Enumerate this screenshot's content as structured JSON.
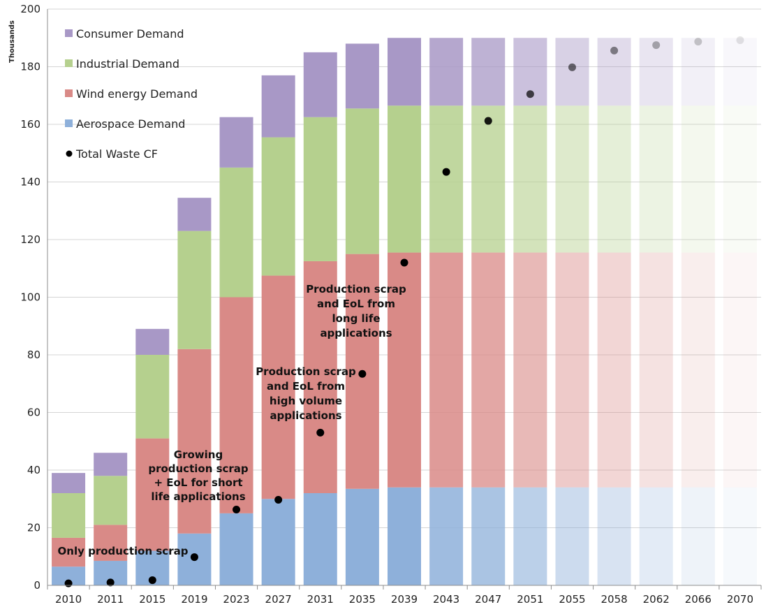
{
  "chart_data": {
    "type": "bar",
    "stacked": true,
    "y_unit_label": "Thousands",
    "ylim": [
      0,
      200
    ],
    "y_ticks": [
      0,
      20,
      40,
      60,
      80,
      100,
      120,
      140,
      160,
      180,
      200
    ],
    "grid": "horizontal",
    "legend_position": "top-left",
    "categories": [
      "2010",
      "2011",
      "2015",
      "2019",
      "2023",
      "2027",
      "2031",
      "2035",
      "2039",
      "2043",
      "2047",
      "2051",
      "2055",
      "2058",
      "2062",
      "2066",
      "2070"
    ],
    "series": [
      {
        "name": "Aerospace Demand",
        "color": "#8eb0da",
        "values": [
          6.5,
          8.5,
          12,
          18,
          25,
          30,
          32,
          33.5,
          34,
          34,
          34,
          34,
          34,
          34,
          34,
          34,
          34
        ]
      },
      {
        "name": "Wind energy Demand",
        "color": "#d98a87",
        "values": [
          10,
          12.5,
          39,
          64,
          75,
          77.5,
          80.5,
          81.5,
          81.5,
          81.5,
          81.5,
          81.5,
          81.5,
          81.5,
          81.5,
          81.5,
          81.5
        ]
      },
      {
        "name": "Industrial Demand",
        "color": "#b5d08e",
        "values": [
          15.5,
          17,
          29,
          41,
          45,
          48,
          50,
          50.5,
          51,
          51,
          51,
          51,
          51,
          51,
          51,
          51,
          51
        ]
      },
      {
        "name": "Consumer Demand",
        "color": "#a898c6",
        "values": [
          7,
          8,
          9,
          11.5,
          17.5,
          21.5,
          22.5,
          22.5,
          23.5,
          23.5,
          23.5,
          23.5,
          23.5,
          23.5,
          23.5,
          23.5,
          23.5
        ]
      }
    ],
    "scatter": {
      "name": "Total Waste CF",
      "color": "#000000",
      "values": [
        0.7,
        1,
        1.8,
        9.8,
        26.3,
        29.7,
        53,
        73.4,
        112,
        143.5,
        161.2,
        170.5,
        179.8,
        185.6,
        187.5,
        188.7,
        189.2
      ]
    },
    "bar_opacity": [
      1,
      1,
      1,
      1,
      1,
      1,
      1,
      1,
      1,
      0.85,
      0.75,
      0.6,
      0.45,
      0.35,
      0.25,
      0.15,
      0.08
    ],
    "point_opacity": [
      1,
      1,
      1,
      1,
      1,
      1,
      1,
      1,
      1,
      1,
      0.9,
      0.7,
      0.55,
      0.45,
      0.3,
      0.2,
      0.1
    ],
    "annotations": [
      {
        "lines": [
          "Only production scrap"
        ]
      },
      {
        "lines": [
          "Growing",
          "production scrap",
          "+ EoL for short",
          "life applications"
        ]
      },
      {
        "lines": [
          "Production scrap",
          "and EoL from",
          "high volume",
          "applications"
        ]
      },
      {
        "lines": [
          "Production scrap",
          "and EoL from",
          "long life",
          "applications"
        ]
      }
    ],
    "legend_order": [
      "Consumer Demand",
      "Industrial Demand",
      "Wind energy Demand",
      "Aerospace Demand",
      "Total Waste CF"
    ]
  }
}
